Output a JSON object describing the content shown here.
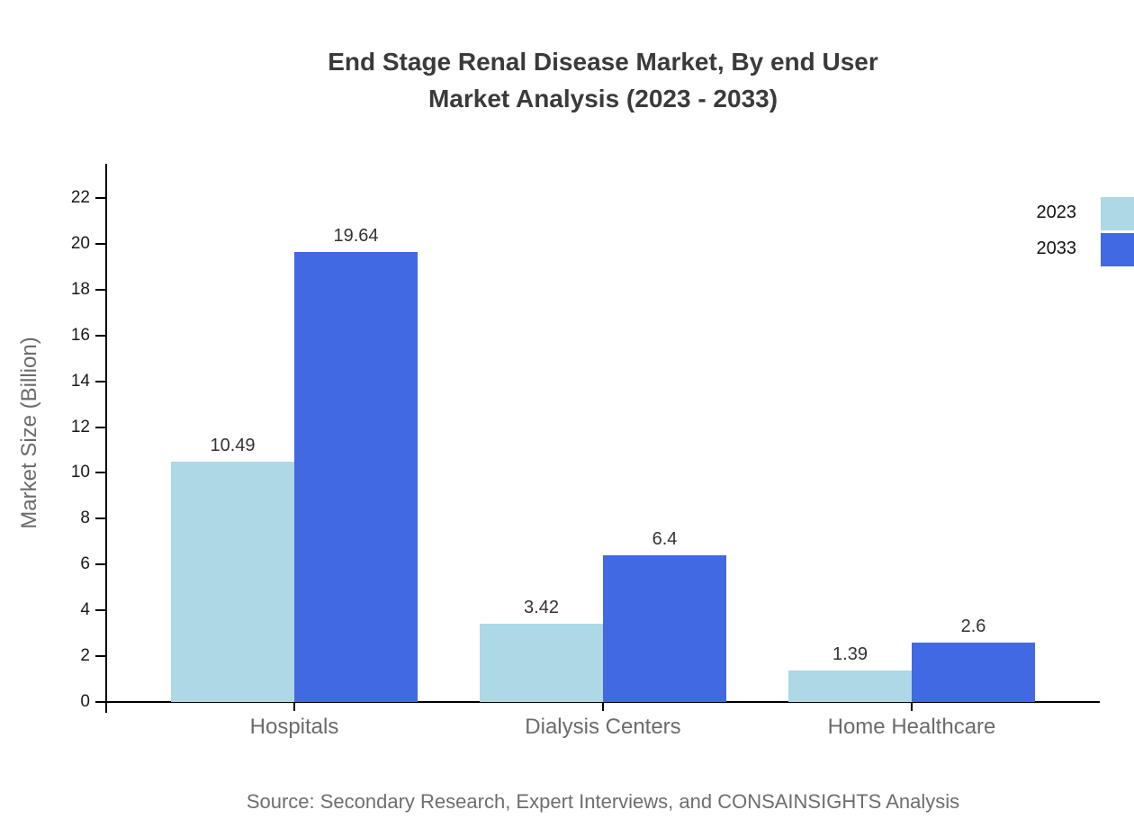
{
  "title": {
    "line1": "End Stage Renal Disease Market, By end User",
    "line2": "Market Analysis (2023 - 2033)"
  },
  "chart_data": {
    "type": "bar",
    "categories": [
      "Hospitals",
      "Dialysis Centers",
      "Home Healthcare"
    ],
    "series": [
      {
        "name": "2023",
        "color": "#ADD8E6",
        "values": [
          10.49,
          3.42,
          1.39
        ]
      },
      {
        "name": "2033",
        "color": "#4169E1",
        "values": [
          19.64,
          6.4,
          2.6
        ]
      }
    ],
    "value_labels": {
      "Hospitals": [
        "10.49",
        "19.64"
      ],
      "Dialysis Centers": [
        "3.42",
        "6.4"
      ],
      "Home Healthcare": [
        "1.39",
        "2.6"
      ]
    },
    "ylabel": "Market Size (Billion)",
    "xlabel": "",
    "yticks": [
      0,
      2,
      4,
      6,
      8,
      10,
      12,
      14,
      16,
      18,
      20,
      22
    ],
    "ylim": [
      0,
      23.5
    ],
    "grid": false,
    "legend_position": "top-right",
    "legend_entries": [
      "2023",
      "2033"
    ]
  },
  "source": "Source: Secondary Research, Expert Interviews, and CONSAINSIGHTS Analysis",
  "colors": {
    "background": "#ffffff",
    "title_text": "#3a3a3a",
    "axis": "#000000",
    "tick_text": "#1a1a1a",
    "muted_text": "#6b6b6b",
    "series_2023": "#ADD8E6",
    "series_2033": "#4169E1"
  }
}
